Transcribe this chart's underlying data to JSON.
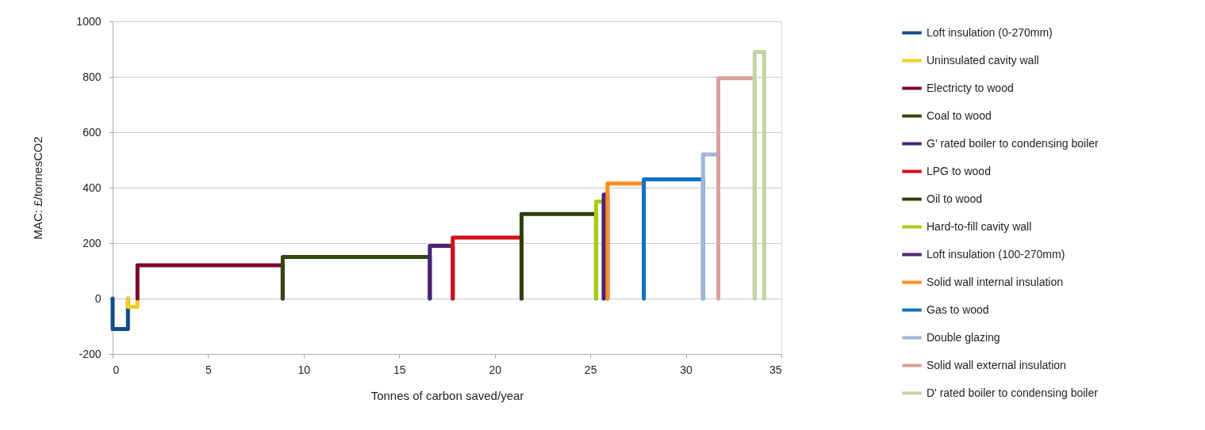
{
  "chart_data": {
    "type": "line",
    "xlabel": "Tonnes of carbon saved/year",
    "ylabel": "MAC: £/tonnesCO2",
    "xlim": [
      0,
      35
    ],
    "xticks": [
      0,
      5,
      10,
      15,
      20,
      25,
      30,
      35
    ],
    "ylim": [
      -200,
      1000
    ],
    "yticks": [
      -200,
      0,
      200,
      400,
      600,
      800,
      {
        "value": 1000,
        "label": "1000"
      }
    ],
    "grid": "y",
    "legend": "right",
    "line_style": "solid",
    "marker": "none",
    "series": [
      {
        "name": "Loft insulation (0-270mm)",
        "color": "#0f4c8a",
        "x": [
          0,
          0,
          0.8,
          0.8
        ],
        "values": [
          0,
          -110,
          -110,
          0
        ]
      },
      {
        "name": "Uninsulated cavity wall",
        "color": "#f5cc1c",
        "x": [
          0.8,
          0.8,
          1.3,
          1.3
        ],
        "values": [
          0,
          -30,
          -30,
          0
        ]
      },
      {
        "name": "Electricty to wood",
        "color": "#7a0a2c",
        "x": [
          1.3,
          1.3,
          8.9,
          8.9
        ],
        "values": [
          0,
          120,
          120,
          0
        ]
      },
      {
        "name": "Coal to wood",
        "color": "#354612",
        "x": [
          8.9,
          8.9,
          16.6,
          16.6
        ],
        "values": [
          0,
          150,
          150,
          0
        ]
      },
      {
        "name": "G' rated boiler to condensing boiler",
        "color": "#4b2377",
        "x": [
          16.6,
          16.6,
          17.8,
          17.8
        ],
        "values": [
          0,
          190,
          190,
          0
        ]
      },
      {
        "name": "LPG to wood",
        "color": "#d40f1c",
        "x": [
          17.8,
          17.8,
          21.4,
          21.4
        ],
        "values": [
          0,
          220,
          220,
          0
        ]
      },
      {
        "name": "Oil to wood",
        "color": "#2f3f0c",
        "x": [
          21.4,
          21.4,
          25.3,
          25.3
        ],
        "values": [
          0,
          305,
          305,
          0
        ]
      },
      {
        "name": "Hard-to-fill cavity wall",
        "color": "#a8cf10",
        "x": [
          25.3,
          25.3,
          25.7,
          25.7
        ],
        "values": [
          0,
          350,
          350,
          0
        ]
      },
      {
        "name": "Loft insulation (100-270mm)",
        "color": "#4b2377",
        "x": [
          25.7,
          25.7,
          25.9,
          25.9
        ],
        "values": [
          0,
          375,
          375,
          0
        ]
      },
      {
        "name": "Solid wall internal insulation",
        "color": "#fb8f1f",
        "x": [
          25.9,
          25.9,
          27.8,
          27.8
        ],
        "values": [
          0,
          415,
          415,
          0
        ]
      },
      {
        "name": "Gas to wood",
        "color": "#0e72c4",
        "x": [
          27.8,
          27.8,
          30.9,
          30.9
        ],
        "values": [
          0,
          430,
          430,
          0
        ]
      },
      {
        "name": "Double glazing",
        "color": "#a3b5d6",
        "x": [
          30.9,
          30.9,
          31.7,
          31.7
        ],
        "values": [
          0,
          520,
          520,
          0
        ]
      },
      {
        "name": "Solid wall external insulation",
        "color": "#d8a09e",
        "x": [
          31.7,
          31.7,
          33.6,
          33.6
        ],
        "values": [
          0,
          795,
          795,
          0
        ]
      },
      {
        "name": "D' rated boiler to condensing boiler",
        "color": "#c3d5a2",
        "x": [
          33.6,
          33.6,
          34.1,
          34.1
        ],
        "values": [
          0,
          890,
          890,
          0
        ]
      }
    ]
  }
}
